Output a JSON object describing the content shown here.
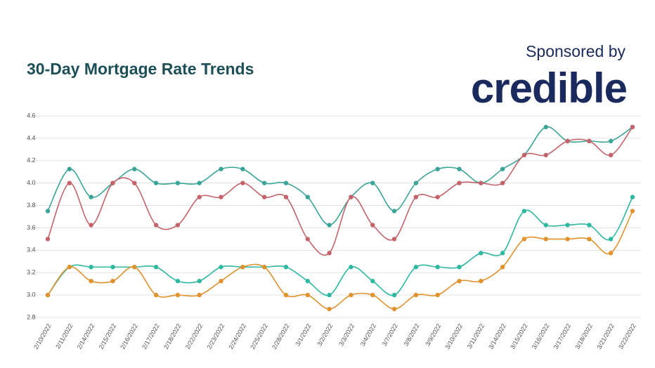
{
  "chart_data": {
    "type": "line",
    "title": "30-Day Mortgage Rate Trends",
    "sponsor_label": "Sponsored by",
    "sponsor_brand": "credible",
    "categories": [
      "2/10/2022",
      "2/11/2022",
      "2/14/2022",
      "2/15/2022",
      "2/16/2022",
      "2/17/2022",
      "2/18/2022",
      "2/22/2022",
      "2/23/2022",
      "2/24/2022",
      "2/25/2022",
      "2/28/2022",
      "3/1/2022",
      "3/2/2022",
      "3/3/2022",
      "3/4/2022",
      "3/7/2022",
      "3/8/2022",
      "3/9/2022",
      "3/10/2022",
      "3/11/2022",
      "3/14/2022",
      "3/15/2022",
      "3/16/2022",
      "3/17/2022",
      "3/18/2022",
      "3/21/2022",
      "3/22/2022"
    ],
    "series": [
      {
        "color": "#3aa597",
        "values": [
          3.75,
          4.125,
          3.875,
          4.0,
          4.125,
          4.0,
          4.0,
          4.0,
          4.125,
          4.125,
          4.0,
          4.0,
          3.875,
          3.625,
          3.875,
          4.0,
          3.75,
          4.0,
          4.125,
          4.125,
          4.0,
          4.125,
          4.25,
          4.5,
          4.375,
          4.375,
          4.375,
          4.5
        ]
      },
      {
        "color": "#c4636b",
        "values": [
          3.5,
          4.0,
          3.625,
          4.0,
          4.0,
          3.625,
          3.625,
          3.875,
          3.875,
          4.0,
          3.875,
          3.875,
          3.5,
          3.375,
          3.875,
          3.625,
          3.5,
          3.875,
          3.875,
          4.0,
          4.0,
          4.0,
          4.25,
          4.25,
          4.375,
          4.375,
          4.25,
          4.5
        ]
      },
      {
        "color": "#2fb8a0",
        "values": [
          3.0,
          3.25,
          3.25,
          3.25,
          3.25,
          3.25,
          3.125,
          3.125,
          3.25,
          3.25,
          3.25,
          3.25,
          3.125,
          3.0,
          3.25,
          3.125,
          3.0,
          3.25,
          3.25,
          3.25,
          3.375,
          3.375,
          3.75,
          3.625,
          3.625,
          3.625,
          3.5,
          3.875
        ]
      },
      {
        "color": "#e0922e",
        "values": [
          3.0,
          3.25,
          3.125,
          3.125,
          3.25,
          3.0,
          3.0,
          3.0,
          3.125,
          3.25,
          3.25,
          3.0,
          3.0,
          2.875,
          3.0,
          3.0,
          2.875,
          3.0,
          3.0,
          3.125,
          3.125,
          3.25,
          3.5,
          3.5,
          3.5,
          3.5,
          3.375,
          3.75
        ]
      }
    ],
    "ylim": [
      2.8,
      4.6
    ],
    "yticks": [
      2.8,
      {
        "value": 3.0,
        "label": "3.0"
      },
      3.2,
      3.4,
      3.6,
      3.8,
      {
        "value": 4.0,
        "label": "4.0"
      },
      4.2,
      4.4,
      4.6
    ],
    "grid": true
  }
}
